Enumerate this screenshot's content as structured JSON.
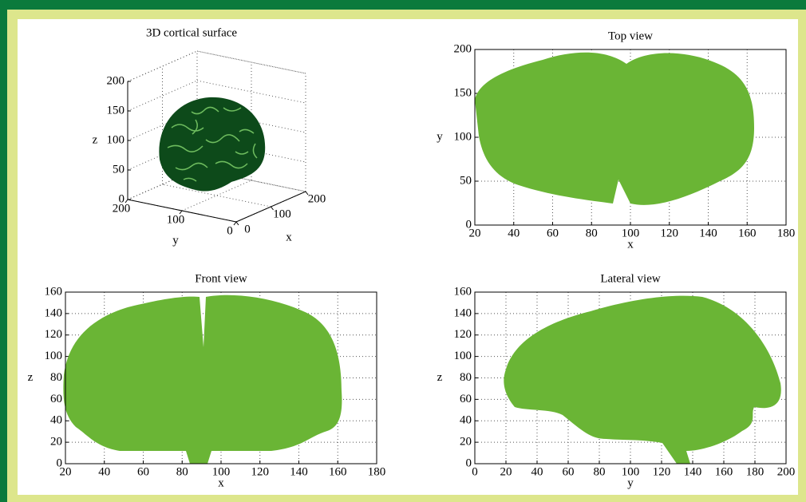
{
  "chart_data": [
    {
      "type": "surface3d",
      "title": "3D cortical surface",
      "xlabel": "x",
      "ylabel": "y",
      "zlabel": "z",
      "xlim": [
        0,
        200
      ],
      "ylim": [
        0,
        200
      ],
      "zlim": [
        0,
        200
      ],
      "xticks": [
        0,
        100,
        200
      ],
      "yticks": [
        0,
        100,
        200
      ],
      "zticks": [
        0,
        50,
        100,
        150,
        200
      ],
      "grid": true,
      "color": "#0d4a1a"
    },
    {
      "type": "projection",
      "title": "Top view",
      "xlabel": "x",
      "ylabel": "y",
      "xlim": [
        20,
        180
      ],
      "ylim": [
        0,
        200
      ],
      "xticks": [
        20,
        40,
        60,
        80,
        100,
        120,
        140,
        160,
        180
      ],
      "yticks": [
        0,
        50,
        100,
        150,
        200
      ],
      "grid": true,
      "color": "#6ab535"
    },
    {
      "type": "projection",
      "title": "Front view",
      "xlabel": "x",
      "ylabel": "z",
      "xlim": [
        20,
        180
      ],
      "ylim": [
        0,
        160
      ],
      "xticks": [
        20,
        40,
        60,
        80,
        100,
        120,
        140,
        160,
        180
      ],
      "yticks": [
        0,
        20,
        40,
        60,
        80,
        100,
        120,
        140,
        160
      ],
      "grid": true,
      "color": "#6ab535"
    },
    {
      "type": "projection",
      "title": "Lateral view",
      "xlabel": "y",
      "ylabel": "z",
      "xlim": [
        0,
        200
      ],
      "ylim": [
        0,
        160
      ],
      "xticks": [
        0,
        20,
        40,
        60,
        80,
        100,
        120,
        140,
        160,
        180,
        200
      ],
      "yticks": [
        0,
        20,
        40,
        60,
        80,
        100,
        120,
        140,
        160
      ],
      "grid": true,
      "color": "#6ab535"
    }
  ]
}
